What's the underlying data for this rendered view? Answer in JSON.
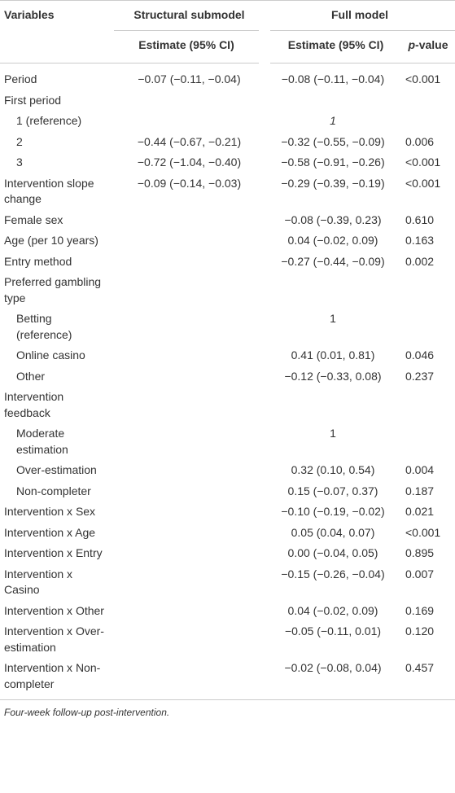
{
  "header": {
    "variables": "Variables",
    "structural": "Structural submodel",
    "full": "Full model"
  },
  "subheader": [
    "Estimate (95% CI)",
    "Estimate (95% CI)",
    [
      "p",
      "-value"
    ]
  ],
  "rows": [
    [
      "Period",
      "−0.07 (−0.11, −0.04)",
      "−0.08 (−0.11, −0.04)",
      "<0.001"
    ],
    [
      "First period",
      null,
      null,
      null
    ],
    [
      "1 (reference)",
      null,
      "1",
      null
    ],
    [
      "2",
      "−0.44 (−0.67, −0.21)",
      "−0.32 (−0.55, −0.09)",
      "0.006"
    ],
    [
      "3",
      "−0.72 (−1.04, −0.40)",
      "−0.58 (−0.91, −0.26)",
      "<0.001"
    ],
    [
      "Intervention slope change",
      "−0.09 (−0.14, −0.03)",
      "−0.29 (−0.39, −0.19)",
      "<0.001"
    ],
    [
      "Female sex",
      null,
      "−0.08 (−0.39, 0.23)",
      "0.610"
    ],
    [
      "Age (per 10 years)",
      null,
      "0.04 (−0.02, 0.09)",
      "0.163"
    ],
    [
      "Entry method",
      null,
      "−0.27 (−0.44, −0.09)",
      "0.002"
    ],
    [
      "Preferred gambling type",
      null,
      null,
      null
    ],
    [
      "Betting (reference)",
      null,
      "1",
      null
    ],
    [
      "Online casino",
      null,
      "0.41 (0.01, 0.81)",
      "0.046"
    ],
    [
      "Other",
      null,
      "−0.12 (−0.33, 0.08)",
      "0.237"
    ],
    [
      "Intervention feedback",
      null,
      null,
      null
    ],
    [
      "Moderate estimation",
      null,
      "1",
      null
    ],
    [
      "Over-estimation",
      null,
      "0.32 (0.10, 0.54)",
      "0.004"
    ],
    [
      "Non-completer",
      null,
      "0.15 (−0.07, 0.37)",
      "0.187"
    ],
    [
      "Intervention x Sex",
      null,
      "−0.10 (−0.19, −0.02)",
      "0.021"
    ],
    [
      "Intervention x Age",
      null,
      "0.05 (0.04, 0.07)",
      "<0.001"
    ],
    [
      "Intervention x Entry",
      null,
      "0.00 (−0.04, 0.05)",
      "0.895"
    ],
    [
      "Intervention x Casino",
      null,
      "−0.15 (−0.26, −0.04)",
      "0.007"
    ],
    [
      "Intervention x Other",
      null,
      "0.04 (−0.02, 0.09)",
      "0.169"
    ],
    [
      "Intervention x Over-estimation",
      null,
      "−0.05 (−0.11, 0.01)",
      "0.120"
    ],
    [
      "Intervention x Non-completer",
      null,
      "−0.02 (−0.08, 0.04)",
      "0.457"
    ]
  ],
  "footnote": "Four-week follow-up post-intervention."
}
